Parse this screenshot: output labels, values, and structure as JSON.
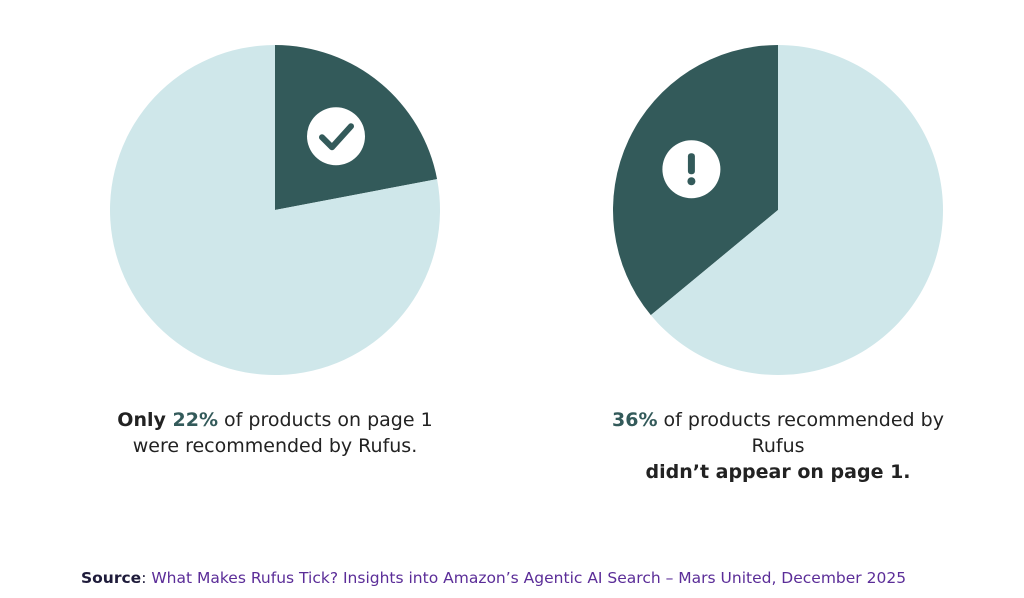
{
  "chart_data": [
    {
      "type": "pie",
      "slices": [
        {
          "label": "recommended by Rufus",
          "value": 22,
          "color": "#335a5a",
          "icon": "checkmark-icon"
        },
        {
          "label": "other",
          "value": 78,
          "color": "#cfe7ea"
        }
      ],
      "caption": {
        "pre": "Only ",
        "pct": "22%",
        "post": " of products on page 1 were recommended by Rufus.",
        "bold": ""
      }
    },
    {
      "type": "pie",
      "slices": [
        {
          "label": "did not appear on page 1",
          "value": 36,
          "color": "#335a5a",
          "icon": "exclamation-icon"
        },
        {
          "label": "other",
          "value": 64,
          "color": "#cfe7ea"
        }
      ],
      "caption": {
        "pre": "",
        "pct": "36%",
        "post": " of products recommended by Rufus ",
        "bold": "didn’t appear on page 1."
      }
    }
  ],
  "source": {
    "label": "Source",
    "text": "What Makes Rufus Tick? Insights into Amazon’s Agentic AI Search – Mars United, December 2025"
  }
}
